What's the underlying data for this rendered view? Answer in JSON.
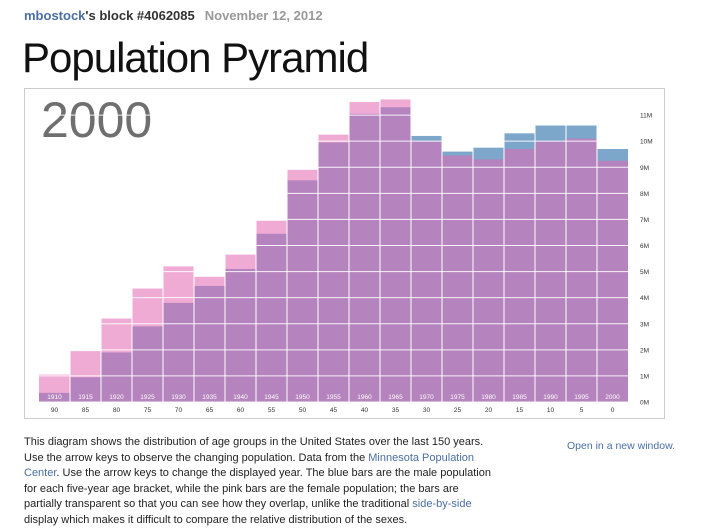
{
  "header": {
    "user": "mbostock",
    "block_text": "'s block #4062085",
    "date": "November 12, 2012"
  },
  "title": "Population Pyramid",
  "open_link": "Open in a new window.",
  "description": {
    "p1": "This diagram shows the distribution of age groups in the United States over the last 150 years. Use the arrow keys to observe the changing population. Data from the ",
    "link1": "Minnesota Population Center",
    "p2": ". Use the arrow keys to change the displayed year. The blue bars are the male population for each five-year age bracket, while the pink bars are the female population; the bars are partially transparent so that you can see how they overlap, unlike the traditional ",
    "link2": "side-by-side",
    "p3": " display which makes it difficult to compare the relative distribution of the sexes."
  },
  "colors": {
    "male": "#4682b4",
    "female": "#e466b2",
    "frame_border": "#cccccc",
    "link": "#4a6fa0"
  },
  "chart_data": {
    "type": "bar",
    "year_label": "2000",
    "birth_years": [
      "1910",
      "1915",
      "1920",
      "1925",
      "1930",
      "1935",
      "1940",
      "1945",
      "1950",
      "1955",
      "1960",
      "1965",
      "1970",
      "1975",
      "1980",
      "1985",
      "1990",
      "1995",
      "2000"
    ],
    "ages": [
      "90",
      "85",
      "80",
      "75",
      "70",
      "65",
      "60",
      "55",
      "50",
      "45",
      "40",
      "35",
      "30",
      "25",
      "20",
      "15",
      "10",
      "5",
      "0"
    ],
    "series": [
      {
        "name": "male",
        "values": [
          0.35,
          0.95,
          1.9,
          2.9,
          3.8,
          4.45,
          5.1,
          6.45,
          8.5,
          9.95,
          11.05,
          11.3,
          10.2,
          9.6,
          9.75,
          10.3,
          10.6,
          10.6,
          9.7
        ]
      },
      {
        "name": "female",
        "values": [
          1.05,
          1.95,
          3.2,
          4.35,
          5.2,
          4.8,
          5.65,
          6.95,
          8.9,
          10.25,
          11.5,
          11.6,
          10.0,
          9.45,
          9.3,
          9.7,
          10.0,
          10.1,
          9.25
        ]
      }
    ],
    "y_ticks": [
      "0M",
      "1M",
      "2M",
      "3M",
      "4M",
      "5M",
      "6M",
      "7M",
      "8M",
      "9M",
      "10M",
      "11M"
    ],
    "ylim": [
      0,
      12
    ],
    "grid": true
  }
}
